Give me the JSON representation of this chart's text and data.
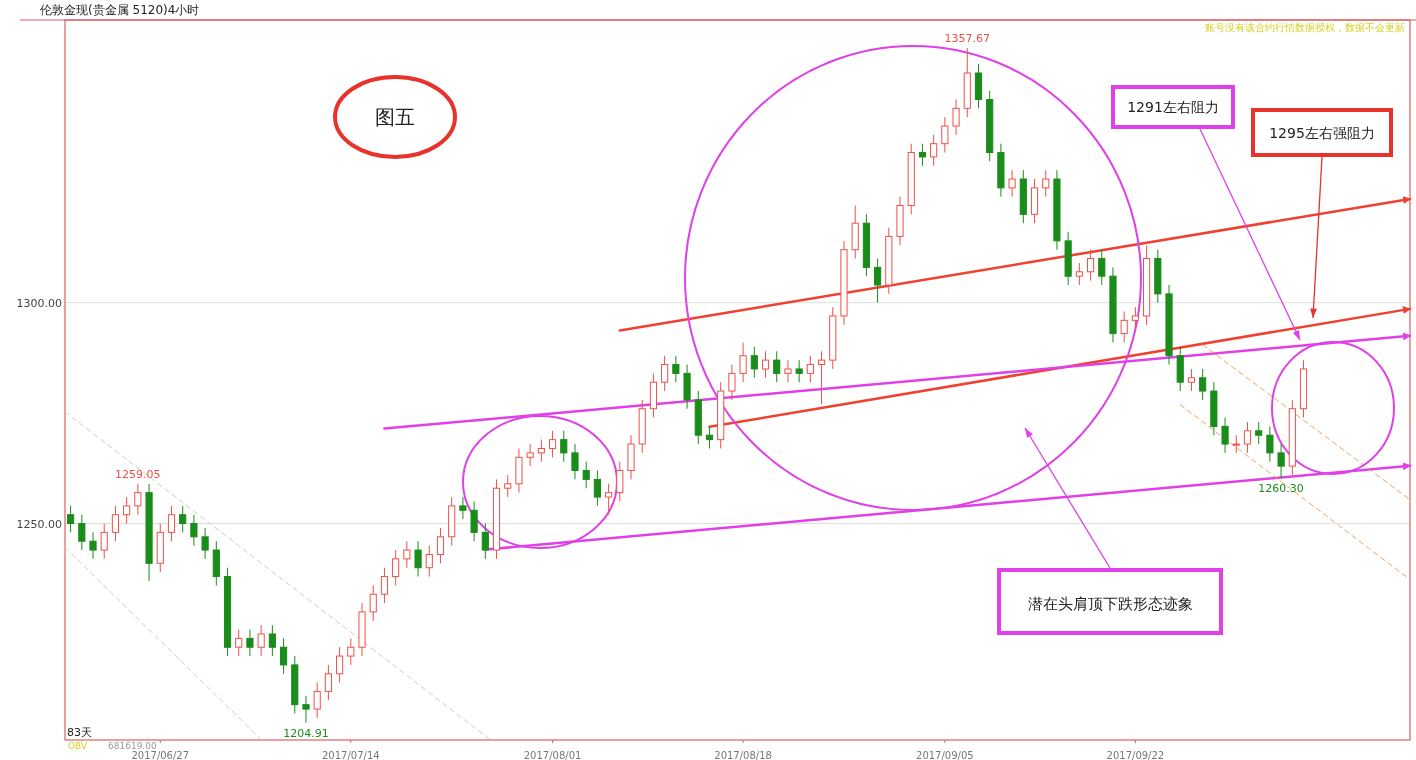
{
  "chart_data": {
    "type": "candlestick",
    "title": "伦敦金现(贵金属 5120)4小时",
    "x": [
      "2017-06-19",
      "2017-06-20",
      "2017-06-21",
      "2017-06-22",
      "2017-06-23",
      "2017-06-24",
      "2017-06-25",
      "2017-06-26",
      "2017-06-27",
      "2017-06-28",
      "2017-06-29",
      "2017-06-30",
      "2017-07-01",
      "2017-07-02",
      "2017-07-03",
      "2017-07-04",
      "2017-07-05",
      "2017-07-06",
      "2017-07-07",
      "2017-07-08",
      "2017-07-09",
      "2017-07-10",
      "2017-07-11",
      "2017-07-12",
      "2017-07-13",
      "2017-07-14",
      "2017-07-15",
      "2017-07-16",
      "2017-07-17",
      "2017-07-18",
      "2017-07-19",
      "2017-07-20",
      "2017-07-21",
      "2017-07-22",
      "2017-07-23",
      "2017-07-24",
      "2017-07-25",
      "2017-07-26",
      "2017-07-27",
      "2017-07-28",
      "2017-07-29",
      "2017-07-30",
      "2017-07-31",
      "2017-08-01",
      "2017-08-02",
      "2017-08-03",
      "2017-08-04",
      "2017-08-05",
      "2017-08-06",
      "2017-08-07",
      "2017-08-08",
      "2017-08-09",
      "2017-08-10",
      "2017-08-11",
      "2017-08-12",
      "2017-08-13",
      "2017-08-14",
      "2017-08-15",
      "2017-08-16",
      "2017-08-17",
      "2017-08-18",
      "2017-08-19",
      "2017-08-20",
      "2017-08-21",
      "2017-08-22",
      "2017-08-23",
      "2017-08-24",
      "2017-08-25",
      "2017-08-26",
      "2017-08-27",
      "2017-08-28",
      "2017-08-29",
      "2017-08-30",
      "2017-08-31",
      "2017-09-01",
      "2017-09-02",
      "2017-09-03",
      "2017-09-04",
      "2017-09-05",
      "2017-09-06",
      "2017-09-07",
      "2017-09-08",
      "2017-09-09",
      "2017-09-10",
      "2017-09-11",
      "2017-09-12",
      "2017-09-13",
      "2017-09-14",
      "2017-09-15",
      "2017-09-16",
      "2017-09-17",
      "2017-09-18",
      "2017-09-19",
      "2017-09-20",
      "2017-09-21",
      "2017-09-22",
      "2017-09-23",
      "2017-09-24",
      "2017-09-25",
      "2017-09-26",
      "2017-09-27",
      "2017-09-28",
      "2017-09-29",
      "2017-09-30",
      "2017-10-01",
      "2017-10-02",
      "2017-10-03",
      "2017-10-04",
      "2017-10-05",
      "2017-10-06",
      "2017-10-07"
    ],
    "ohlc": [
      [
        1252,
        1254,
        1248,
        1250
      ],
      [
        1250,
        1252,
        1244,
        1246
      ],
      [
        1246,
        1248,
        1242,
        1244
      ],
      [
        1244,
        1250,
        1242,
        1248
      ],
      [
        1248,
        1254,
        1246,
        1252
      ],
      [
        1252,
        1256,
        1250,
        1254
      ],
      [
        1254,
        1259.05,
        1252,
        1257
      ],
      [
        1257,
        1259,
        1237,
        1241
      ],
      [
        1241,
        1250,
        1239,
        1248
      ],
      [
        1248,
        1254,
        1246,
        1252
      ],
      [
        1252,
        1254,
        1248,
        1250
      ],
      [
        1250,
        1252,
        1245,
        1247
      ],
      [
        1247,
        1249,
        1242,
        1244
      ],
      [
        1244,
        1246,
        1236,
        1238
      ],
      [
        1238,
        1240,
        1220,
        1222
      ],
      [
        1222,
        1226,
        1220,
        1224
      ],
      [
        1224,
        1226,
        1220,
        1222
      ],
      [
        1222,
        1227,
        1220,
        1225
      ],
      [
        1225,
        1227,
        1220,
        1222
      ],
      [
        1222,
        1224,
        1216,
        1218
      ],
      [
        1218,
        1220,
        1207,
        1209
      ],
      [
        1209,
        1211,
        1204.91,
        1208
      ],
      [
        1208,
        1214,
        1206,
        1212
      ],
      [
        1212,
        1218,
        1210,
        1216
      ],
      [
        1216,
        1222,
        1214,
        1220
      ],
      [
        1220,
        1224,
        1218,
        1222
      ],
      [
        1222,
        1232,
        1220,
        1230
      ],
      [
        1230,
        1236,
        1228,
        1234
      ],
      [
        1234,
        1240,
        1232,
        1238
      ],
      [
        1238,
        1244,
        1236,
        1242
      ],
      [
        1242,
        1246,
        1240,
        1244
      ],
      [
        1244,
        1246,
        1238,
        1240
      ],
      [
        1240,
        1245,
        1238,
        1243
      ],
      [
        1243,
        1249,
        1241,
        1247
      ],
      [
        1247,
        1256,
        1245,
        1254
      ],
      [
        1254,
        1256,
        1251,
        1253
      ],
      [
        1253,
        1255,
        1246,
        1248
      ],
      [
        1248,
        1250,
        1242,
        1244
      ],
      [
        1244,
        1260,
        1242,
        1258
      ],
      [
        1258,
        1261,
        1256,
        1259
      ],
      [
        1259,
        1267,
        1257,
        1265
      ],
      [
        1265,
        1268,
        1263,
        1266
      ],
      [
        1266,
        1269,
        1264,
        1267
      ],
      [
        1267,
        1271,
        1265,
        1269
      ],
      [
        1269,
        1271,
        1264,
        1266
      ],
      [
        1266,
        1268,
        1260,
        1262
      ],
      [
        1262,
        1264,
        1258,
        1260
      ],
      [
        1260,
        1262,
        1254,
        1256
      ],
      [
        1256,
        1259,
        1252,
        1257
      ],
      [
        1257,
        1264,
        1255,
        1262
      ],
      [
        1262,
        1270,
        1260,
        1268
      ],
      [
        1268,
        1278,
        1266,
        1276
      ],
      [
        1276,
        1284,
        1274,
        1282
      ],
      [
        1282,
        1288,
        1280,
        1286
      ],
      [
        1286,
        1288,
        1282,
        1284
      ],
      [
        1284,
        1286,
        1276,
        1278
      ],
      [
        1278,
        1280,
        1268,
        1270
      ],
      [
        1270,
        1272,
        1267,
        1269
      ],
      [
        1269,
        1282,
        1267,
        1280
      ],
      [
        1280,
        1286,
        1278,
        1284
      ],
      [
        1284,
        1291,
        1282,
        1288
      ],
      [
        1288,
        1290,
        1283,
        1285
      ],
      [
        1285,
        1289,
        1283,
        1287
      ],
      [
        1287,
        1289,
        1282,
        1284
      ],
      [
        1284,
        1287,
        1282,
        1285
      ],
      [
        1285,
        1287,
        1282,
        1284
      ],
      [
        1284,
        1288,
        1282,
        1286
      ],
      [
        1286,
        1289,
        1277,
        1287
      ],
      [
        1287,
        1299,
        1285,
        1297
      ],
      [
        1297,
        1314,
        1295,
        1312
      ],
      [
        1312,
        1322,
        1310,
        1318
      ],
      [
        1318,
        1320,
        1306,
        1308
      ],
      [
        1308,
        1310,
        1300,
        1304
      ],
      [
        1304,
        1317,
        1302,
        1315
      ],
      [
        1315,
        1324,
        1313,
        1322
      ],
      [
        1322,
        1336,
        1320,
        1334
      ],
      [
        1334,
        1336,
        1331,
        1333
      ],
      [
        1333,
        1338,
        1331,
        1336
      ],
      [
        1336,
        1342,
        1334,
        1340
      ],
      [
        1340,
        1346,
        1338,
        1344
      ],
      [
        1344,
        1357.67,
        1342,
        1352
      ],
      [
        1352,
        1354,
        1344,
        1346
      ],
      [
        1346,
        1348,
        1332,
        1334
      ],
      [
        1334,
        1336,
        1324,
        1326
      ],
      [
        1326,
        1330,
        1324,
        1328
      ],
      [
        1328,
        1330,
        1318,
        1320
      ],
      [
        1320,
        1328,
        1318,
        1326
      ],
      [
        1326,
        1330,
        1324,
        1328
      ],
      [
        1328,
        1330,
        1312,
        1314
      ],
      [
        1314,
        1316,
        1304,
        1306
      ],
      [
        1306,
        1309,
        1304,
        1307
      ],
      [
        1307,
        1312,
        1305,
        1310
      ],
      [
        1310,
        1312,
        1304,
        1306
      ],
      [
        1306,
        1308,
        1291,
        1293
      ],
      [
        1293,
        1298,
        1291,
        1296
      ],
      [
        1296,
        1299,
        1294,
        1297
      ],
      [
        1297,
        1313,
        1295,
        1310
      ],
      [
        1310,
        1312,
        1300,
        1302
      ],
      [
        1302,
        1304,
        1286,
        1288
      ],
      [
        1288,
        1290,
        1280,
        1282
      ],
      [
        1282,
        1285,
        1280,
        1283
      ],
      [
        1283,
        1285,
        1278,
        1280
      ],
      [
        1280,
        1282,
        1270,
        1272
      ],
      [
        1272,
        1274,
        1266,
        1268
      ],
      [
        1268,
        1270,
        1266,
        1268
      ],
      [
        1268,
        1273,
        1266,
        1271
      ],
      [
        1271,
        1273,
        1268,
        1270
      ],
      [
        1270,
        1272,
        1264,
        1266
      ],
      [
        1266,
        1268,
        1260.3,
        1263
      ],
      [
        1263,
        1278,
        1261,
        1276
      ],
      [
        1276,
        1287,
        1274,
        1285
      ]
    ],
    "series": [
      {
        "type": "line",
        "color": "#f04030",
        "line_style": "solid",
        "x": [
          "2017-08-07",
          "2017-10-16T12:00"
        ],
        "values": [
          1293.7,
          1323.5
        ]
      },
      {
        "type": "line",
        "color": "#f04030",
        "line_style": "solid",
        "x": [
          "2017-08-15",
          "2017-10-16T12:00"
        ],
        "values": [
          1271.9,
          1298.6
        ]
      },
      {
        "type": "line",
        "color": "#e040e8",
        "line_style": "solid",
        "x": [
          "2017-07-17",
          "2017-10-16T12:00"
        ],
        "values": [
          1271.5,
          1292.5
        ]
      },
      {
        "type": "line",
        "color": "#e040e8",
        "line_style": "solid",
        "x": [
          "2017-07-26",
          "2017-10-16T12:00"
        ],
        "values": [
          1244.1,
          1263.1
        ]
      },
      {
        "type": "line",
        "color": "#cccccc",
        "line_style": "dashed",
        "x": [
          "2017-06-18T12:00",
          "2017-07-26T10:00"
        ],
        "values": [
          1275.3,
          1201.1
        ]
      },
      {
        "type": "line",
        "color": "#cccccc",
        "line_style": "dashed",
        "x": [
          "2017-06-18T12:00",
          "2017-07-06"
        ],
        "values": [
          1244.6,
          1201.1
        ]
      },
      {
        "type": "line",
        "color": "#f5a060",
        "line_style": "dashed",
        "x": [
          "2017-09-28",
          "2017-10-16T12:00"
        ],
        "values": [
          1290.5,
          1255.4
        ]
      },
      {
        "type": "line",
        "color": "#f5a060",
        "line_style": "dashed",
        "x": [
          "2017-09-26",
          "2017-10-16T12:00"
        ],
        "values": [
          1276.9,
          1237.3
        ]
      }
    ],
    "xlim": [
      "2017-06-18T12:00",
      "2017-10-16T12:00"
    ],
    "xticks": [
      {
        "value": "2017-06-27",
        "label": "2017/06/27"
      },
      {
        "value": "2017-07-14",
        "label": "2017/07/14"
      },
      {
        "value": "2017-08-01",
        "label": "2017/08/01"
      },
      {
        "value": "2017-08-18",
        "label": "2017/08/18"
      },
      {
        "value": "2017-09-05",
        "label": "2017/09/05"
      },
      {
        "value": "2017-09-22",
        "label": "2017/09/22"
      }
    ],
    "ylim": [
      1201,
      1364
    ],
    "yticks": [
      {
        "value": 1250,
        "label": "1250.00"
      },
      {
        "value": 1300,
        "label": "1300.00"
      }
    ],
    "grid": "y",
    "annotations": [
      "图五",
      "1291左右阻力",
      "1295左右强阻力",
      "潜在头肩顶下跌形态迹象",
      "账号没有该合约行情数据授权，数据不会更新",
      "83天",
      "OBV",
      "681619.00",
      {
        "text": "1357.67",
        "x": "2017-09-07",
        "y": 1357.67
      },
      {
        "text": "1259.05",
        "x": "2017-06-25",
        "y": 1259.05
      },
      {
        "text": "1204.91",
        "x": "2017-07-10",
        "y": 1204.91
      },
      {
        "text": "1260.30",
        "x": "2017-10-05",
        "y": 1260.3
      }
    ]
  }
}
